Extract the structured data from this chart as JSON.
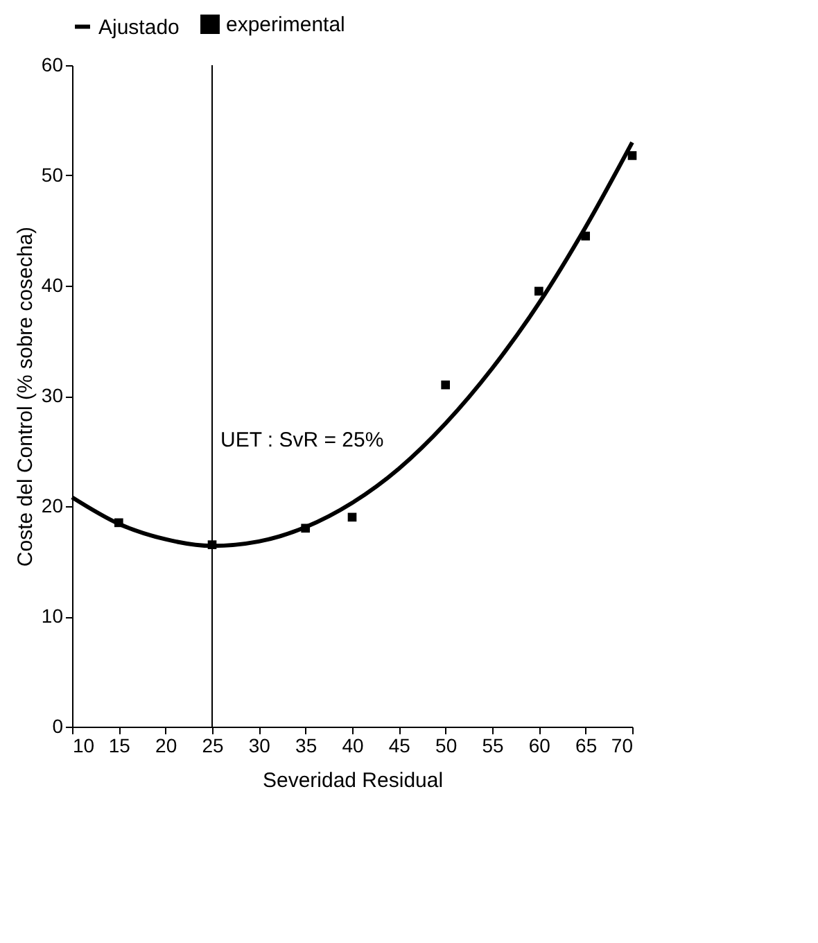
{
  "chart_data": {
    "type": "line",
    "xlabel": "Severidad Residual",
    "ylabel": "Coste del Control (% sobre cosecha)",
    "xlim": [
      10,
      70
    ],
    "xticks": [
      10,
      15,
      20,
      25,
      30,
      35,
      40,
      45,
      50,
      55,
      60,
      65,
      70
    ],
    "ylim": [
      0,
      60
    ],
    "yticks": [
      0,
      10,
      20,
      30,
      40,
      50,
      60
    ],
    "grid": false,
    "legend": "top",
    "series": [
      {
        "name": "Ajustado",
        "color": "#000000",
        "line_style": "solid",
        "x": [
          10,
          15,
          20,
          25,
          30,
          35,
          40,
          45,
          50,
          55,
          60,
          65,
          70
        ],
        "values": [
          20.8,
          18.4,
          17.0,
          16.4,
          16.8,
          18.1,
          20.3,
          23.4,
          27.5,
          32.5,
          38.4,
          45.3,
          53.0
        ]
      },
      {
        "name": "experimental",
        "type": "scatter",
        "color": "#000000",
        "marker": "square",
        "x": [
          15,
          25,
          35,
          40,
          50,
          60,
          65,
          70
        ],
        "values": [
          18.5,
          16.5,
          18,
          19,
          31,
          39.5,
          44.5,
          51.8
        ]
      }
    ],
    "ref_lines": [
      {
        "axis": "x",
        "value": 25,
        "label": "UET : SvR = 25%",
        "color": "#000000",
        "line_style": "solid"
      }
    ]
  }
}
